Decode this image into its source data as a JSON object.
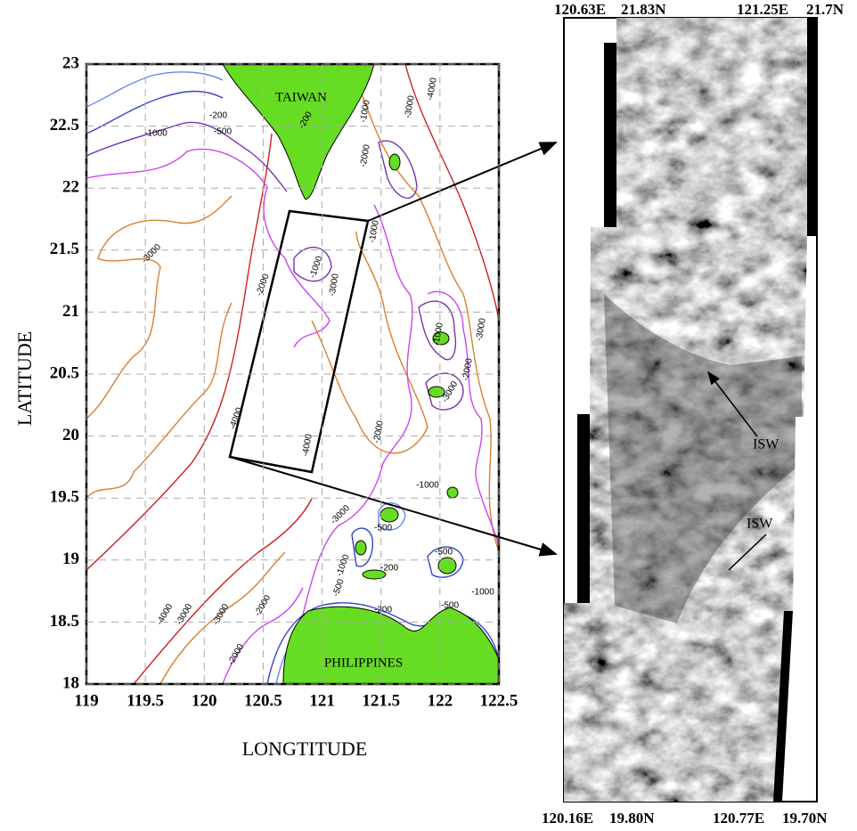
{
  "map": {
    "place_labels": [
      "TAIWAN",
      "PHILIPPINES"
    ],
    "contour_labels": [
      "-1000",
      "-200",
      "-500",
      "-200",
      "-1000",
      "-3000",
      "-4000",
      "-2000",
      "-3000",
      "-1000",
      "-3000",
      "-2000",
      "-1000",
      "-1000",
      "-3000",
      "-2000",
      "-3000",
      "-2000",
      "-4000",
      "-4000",
      "-3000",
      "-500",
      "-1000",
      "-500",
      "-1000",
      "-500",
      "-200",
      "-1000",
      "-500",
      "-200",
      "-4000",
      "-3000",
      "-3000",
      "-2000",
      "-2000"
    ],
    "x_axis": {
      "title": "LONGTITUDE",
      "ticks": [
        119,
        119.5,
        120,
        120.5,
        121,
        121.5,
        122,
        122.5
      ]
    },
    "y_axis": {
      "title": "LATITUDE",
      "ticks": [
        23,
        22.5,
        22,
        21.5,
        21,
        20.5,
        20,
        19.5,
        19,
        18.5,
        18
      ]
    }
  },
  "image": {
    "top_labels": [
      "120.63E",
      "21.83N",
      "121.25E",
      "21.7N"
    ],
    "bottom_labels": [
      "120.16E",
      "19.80N",
      "120.77E",
      "19.70N"
    ],
    "annotations": [
      "ISW",
      "ISW"
    ]
  }
}
